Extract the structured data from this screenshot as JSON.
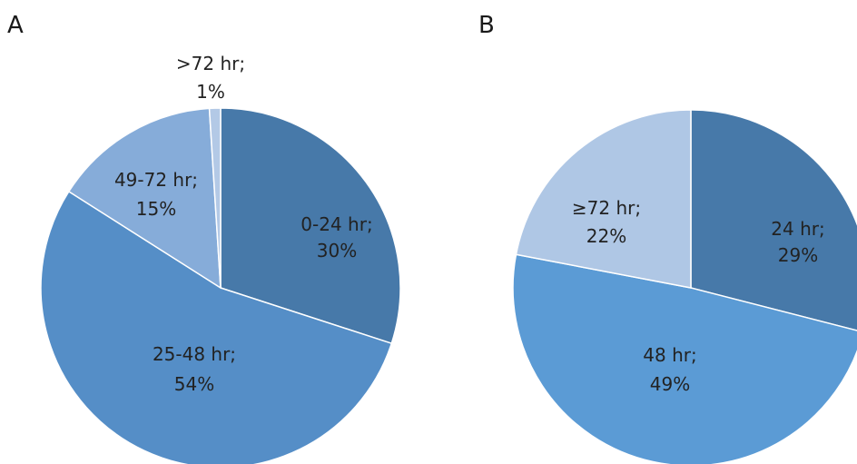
{
  "chart_data": [
    {
      "type": "pie",
      "panel": "A",
      "start_angle_deg": 0,
      "direction": "clockwise",
      "slices": [
        {
          "name": "0-24 hr",
          "value": 30,
          "color": "#4779a9",
          "label_name": "0-24 hr;",
          "label_value": "30%"
        },
        {
          "name": "25-48 hr",
          "value": 54,
          "color": "#558ec7",
          "label_name": "25-48 hr;",
          "label_value": "54%"
        },
        {
          "name": "49-72 hr",
          "value": 15,
          "color": "#86acd9",
          "label_name": "49-72 hr;",
          "label_value": "15%"
        },
        {
          "name": ">72 hr",
          "value": 1,
          "color": "#b3c9e6",
          "label_name": ">72 hr;",
          "label_value": "1%"
        }
      ]
    },
    {
      "type": "pie",
      "panel": "B",
      "start_angle_deg": 0,
      "direction": "clockwise",
      "slices": [
        {
          "name": "24 hr",
          "value": 29,
          "color": "#4779a9",
          "label_name": "24 hr;",
          "label_value": "29%"
        },
        {
          "name": "48 hr",
          "value": 49,
          "color": "#5b9bd5",
          "label_name": "48 hr;",
          "label_value": "49%"
        },
        {
          "name": "≥72 hr",
          "value": 22,
          "color": "#afc7e5",
          "label_name": "≥72 hr;",
          "label_value": "22%"
        }
      ]
    }
  ]
}
